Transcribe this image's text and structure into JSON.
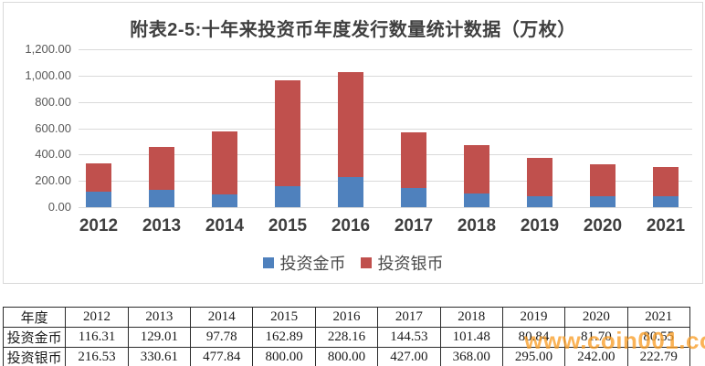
{
  "chart_data": {
    "type": "bar",
    "stacked": true,
    "title": "附表2-5:十年来投资币年度发行数量统计数据（万枚）",
    "categories": [
      "2012",
      "2013",
      "2014",
      "2015",
      "2016",
      "2017",
      "2018",
      "2019",
      "2020",
      "2021"
    ],
    "series": [
      {
        "name": "投资金币",
        "color": "#4F81BD",
        "values": [
          116.31,
          129.01,
          97.78,
          162.89,
          228.16,
          144.53,
          101.48,
          80.84,
          81.7,
          80.55
        ]
      },
      {
        "name": "投资银币",
        "color": "#C0504D",
        "values": [
          216.53,
          330.61,
          477.84,
          800.0,
          800.0,
          427.0,
          368.0,
          295.0,
          242.0,
          222.79
        ]
      }
    ],
    "xlabel": "",
    "ylabel": "",
    "ylim": [
      0,
      1200
    ],
    "ytick_step": 200,
    "ytick_labels": [
      "0.00",
      "200.00",
      "400.00",
      "600.00",
      "800.00",
      "1,000.00",
      "1,200.00"
    ],
    "grid": true,
    "legend_position": "bottom"
  },
  "table": {
    "header": [
      "年度",
      "2012",
      "2013",
      "2014",
      "2015",
      "2016",
      "2017",
      "2018",
      "2019",
      "2020",
      "2021"
    ],
    "rows": [
      [
        "投资金币",
        "116.31",
        "129.01",
        "97.78",
        "162.89",
        "228.16",
        "144.53",
        "101.48",
        "80.84",
        "81.70",
        "80.55"
      ],
      [
        "投资银币",
        "216.53",
        "330.61",
        "477.84",
        "800.00",
        "800.00",
        "427.00",
        "368.00",
        "295.00",
        "242.00",
        "222.79"
      ]
    ]
  },
  "watermark": {
    "text": "www.coin001.com",
    "color": "#F99D28"
  },
  "colors": {
    "grid": "#D9D9D9",
    "axis_text": "#595959",
    "title_text": "#3F3F3F",
    "chart_border": "#D9D9D9",
    "table_border": "#2B2B2B"
  }
}
